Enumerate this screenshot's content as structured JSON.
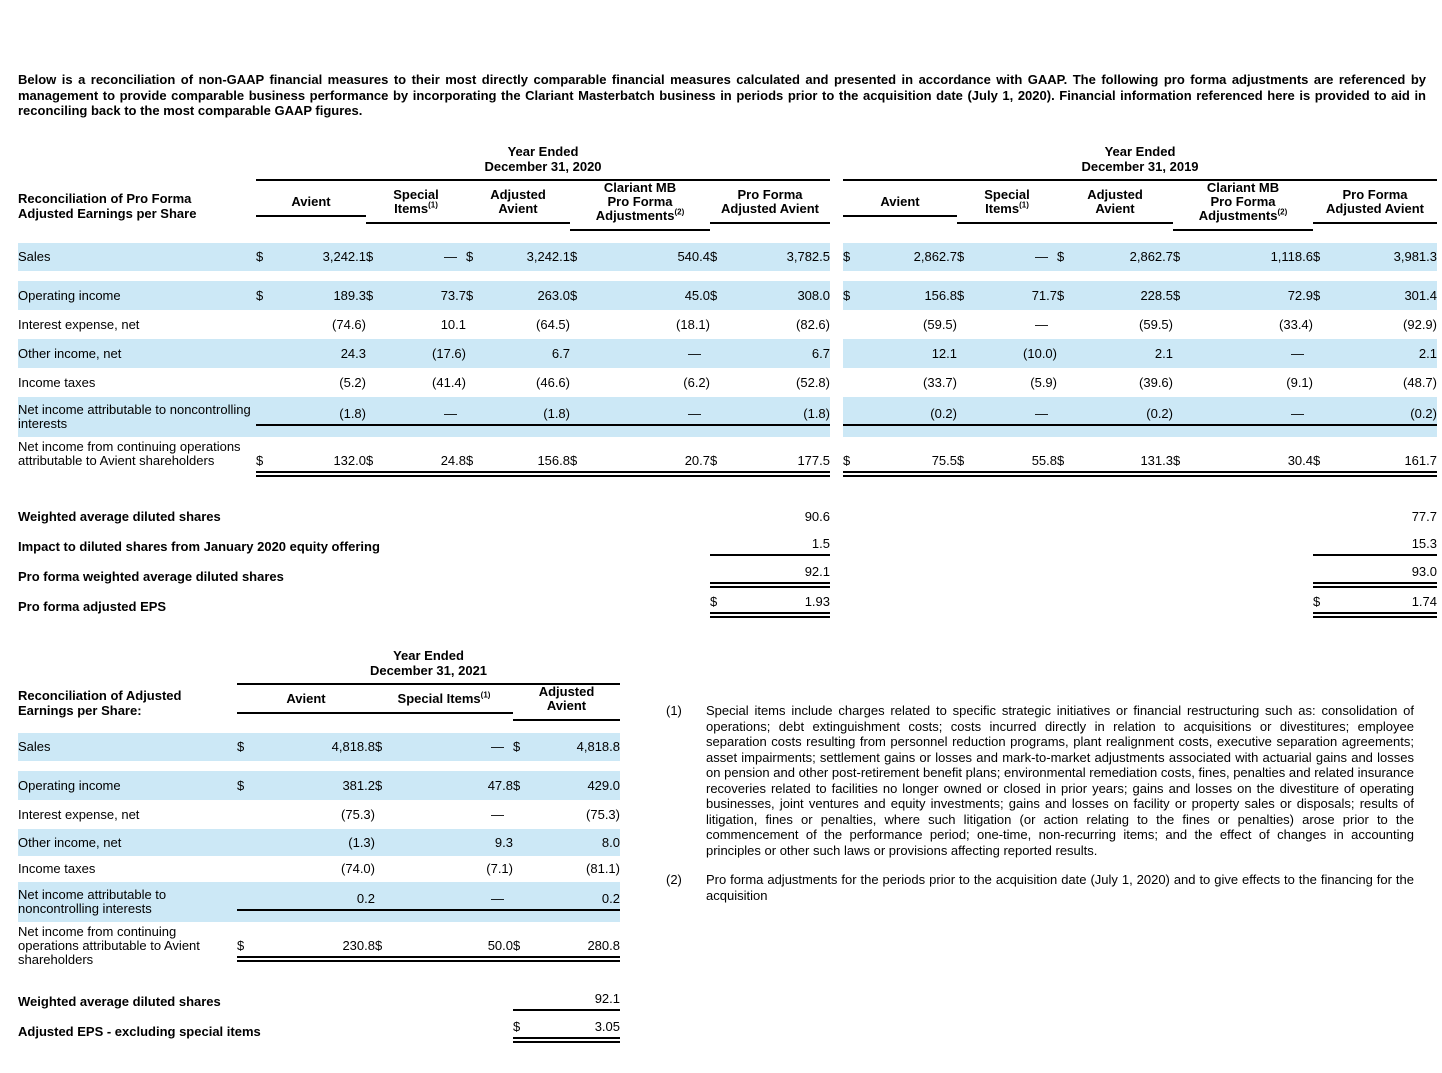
{
  "intro": "Below is a reconciliation of non-GAAP financial measures to their most directly comparable financial measures calculated and presented in accordance with GAAP. The following pro forma adjustments are referenced by management to provide comparable business performance by incorporating the Clariant Masterbatch business in periods prior to the acquisition date (July 1, 2020). Financial information referenced here is provided to aid in reconciling back to the most comparable GAAP figures.",
  "currency": "$",
  "colors": {
    "row_shade": "#cce8f6",
    "rule": "#000000",
    "text": "#000000"
  },
  "pro_forma_table": {
    "row_header": "Reconciliation of Pro Forma\nAdjusted Earnings per Share",
    "periods": [
      "Year Ended\nDecember 31, 2020",
      "Year Ended\nDecember 31, 2019"
    ],
    "columns": [
      {
        "label": "Avient",
        "sup": ""
      },
      {
        "label": "Special\nItems",
        "sup": "(1)"
      },
      {
        "label": "Adjusted\nAvient",
        "sup": ""
      },
      {
        "label": "Clariant MB\nPro Forma\nAdjustments",
        "sup": "(2)"
      },
      {
        "label": "Pro Forma\nAdjusted Avient",
        "sup": ""
      }
    ],
    "rows": [
      {
        "label": "Sales",
        "shaded": true,
        "dollar": true,
        "rule": "",
        "gap_after": true,
        "p2020": [
          "3,242.1",
          "—",
          "3,242.1",
          "540.4",
          "3,782.5"
        ],
        "p2019": [
          "2,862.7",
          "—",
          "2,862.7",
          "1,118.6",
          "3,981.3"
        ]
      },
      {
        "label": "Operating income",
        "shaded": true,
        "dollar": true,
        "rule": "",
        "p2020": [
          "189.3",
          "73.7",
          "263.0",
          "45.0",
          "308.0"
        ],
        "p2019": [
          "156.8",
          "71.7",
          "228.5",
          "72.9",
          "301.4"
        ]
      },
      {
        "label": "Interest expense, net",
        "shaded": false,
        "dollar": false,
        "rule": "",
        "p2020": [
          "(74.6)",
          "10.1",
          "(64.5)",
          "(18.1)",
          "(82.6)"
        ],
        "p2019": [
          "(59.5)",
          "—",
          "(59.5)",
          "(33.4)",
          "(92.9)"
        ]
      },
      {
        "label": "Other income, net",
        "shaded": true,
        "dollar": false,
        "rule": "",
        "p2020": [
          "24.3",
          "(17.6)",
          "6.7",
          "—",
          "6.7"
        ],
        "p2019": [
          "12.1",
          "(10.0)",
          "2.1",
          "—",
          "2.1"
        ]
      },
      {
        "label": "Income taxes",
        "shaded": false,
        "dollar": false,
        "rule": "",
        "p2020": [
          "(5.2)",
          "(41.4)",
          "(46.6)",
          "(6.2)",
          "(52.8)"
        ],
        "p2019": [
          "(33.7)",
          "(5.9)",
          "(39.6)",
          "(9.1)",
          "(48.7)"
        ]
      },
      {
        "label": "Net income attributable to noncontrolling interests",
        "shaded": true,
        "dollar": false,
        "rule": "single",
        "p2020": [
          "(1.8)",
          "—",
          "(1.8)",
          "—",
          "(1.8)"
        ],
        "p2019": [
          "(0.2)",
          "—",
          "(0.2)",
          "—",
          "(0.2)"
        ]
      },
      {
        "label": "Net income from continuing operations attributable to Avient shareholders",
        "shaded": false,
        "dollar": true,
        "rule": "double",
        "label_above": true,
        "p2020": [
          "132.0",
          "24.8",
          "156.8",
          "20.7",
          "177.5"
        ],
        "p2019": [
          "75.5",
          "55.8",
          "131.3",
          "30.4",
          "161.7"
        ]
      }
    ],
    "summary_rows": [
      {
        "label": "Weighted average diluted shares",
        "dollar": false,
        "rule": "",
        "v2020": "90.6",
        "v2019": "77.7"
      },
      {
        "label": "Impact to diluted shares from January 2020 equity offering",
        "dollar": false,
        "rule": "single",
        "v2020": "1.5",
        "v2019": "15.3"
      },
      {
        "label": "Pro forma weighted average diluted shares",
        "dollar": false,
        "rule": "double",
        "v2020": "92.1",
        "v2019": "93.0"
      },
      {
        "label": "Pro forma adjusted EPS",
        "dollar": true,
        "rule": "double",
        "v2020": "1.93",
        "v2019": "1.74"
      }
    ]
  },
  "adjusted_table": {
    "row_header": "Reconciliation of Adjusted\nEarnings per Share:",
    "periods": [
      "Year Ended\nDecember 31, 2021"
    ],
    "columns": [
      {
        "label": "Avient",
        "sup": ""
      },
      {
        "label": "Special Items",
        "sup": "(1)"
      },
      {
        "label": "Adjusted\nAvient",
        "sup": ""
      }
    ],
    "rows": [
      {
        "label": "Sales",
        "shaded": true,
        "dollar": true,
        "rule": "",
        "gap_after": true,
        "values": [
          "4,818.8",
          "—",
          "4,818.8"
        ]
      },
      {
        "label": "Operating income",
        "shaded": true,
        "dollar": true,
        "rule": "",
        "values": [
          "381.2",
          "47.8",
          "429.0"
        ]
      },
      {
        "label": "Interest expense, net",
        "shaded": false,
        "dollar": false,
        "rule": "",
        "values": [
          "(75.3)",
          "—",
          "(75.3)"
        ]
      },
      {
        "label": "Other income, net",
        "shaded": true,
        "dollar": false,
        "rule": "",
        "values": [
          "(1.3)",
          "9.3",
          "8.0"
        ]
      },
      {
        "label": "Income taxes",
        "shaded": false,
        "dollar": false,
        "rule": "",
        "values": [
          "(74.0)",
          "(7.1)",
          "(81.1)"
        ]
      },
      {
        "label": "Net income attributable to noncontrolling interests",
        "shaded": true,
        "dollar": false,
        "rule": "single",
        "values": [
          "0.2",
          "—",
          "0.2"
        ]
      },
      {
        "label": "Net income from continuing operations attributable to Avient shareholders",
        "shaded": false,
        "dollar": true,
        "rule": "double",
        "label_above": true,
        "values": [
          "230.8",
          "50.0",
          "280.8"
        ]
      }
    ],
    "summary_rows": [
      {
        "label": "Weighted average diluted shares",
        "dollar": false,
        "rule": "single",
        "value": "92.1"
      },
      {
        "label": "Adjusted EPS - excluding special items",
        "dollar": true,
        "rule": "double",
        "value": "3.05"
      }
    ]
  },
  "footnotes": [
    {
      "marker": "(1)",
      "text": "Special items include charges related to specific strategic initiatives or financial restructuring such as: consolidation of operations; debt extinguishment costs; costs incurred directly in relation to acquisitions or divestitures; employee separation costs resulting from personnel reduction programs, plant realignment costs, executive separation agreements; asset impairments; settlement gains or losses and mark-to-market adjustments associated with actuarial gains and losses on pension and other post-retirement benefit plans; environmental remediation costs, fines, penalties and related insurance recoveries related to facilities no longer owned or closed in prior years; gains and losses on the divestiture of operating businesses, joint ventures and equity investments; gains and losses on facility or property sales or disposals; results of litigation, fines or penalties, where such litigation (or action relating to the fines or penalties) arose prior to the commencement of the performance period; one-time, non-recurring items; and the effect of changes in accounting principles or other such laws or provisions affecting reported results."
    },
    {
      "marker": "(2)",
      "text": "Pro forma adjustments for the periods prior to the acquisition date (July 1, 2020) and to give effects to the financing for the acquisition"
    }
  ]
}
